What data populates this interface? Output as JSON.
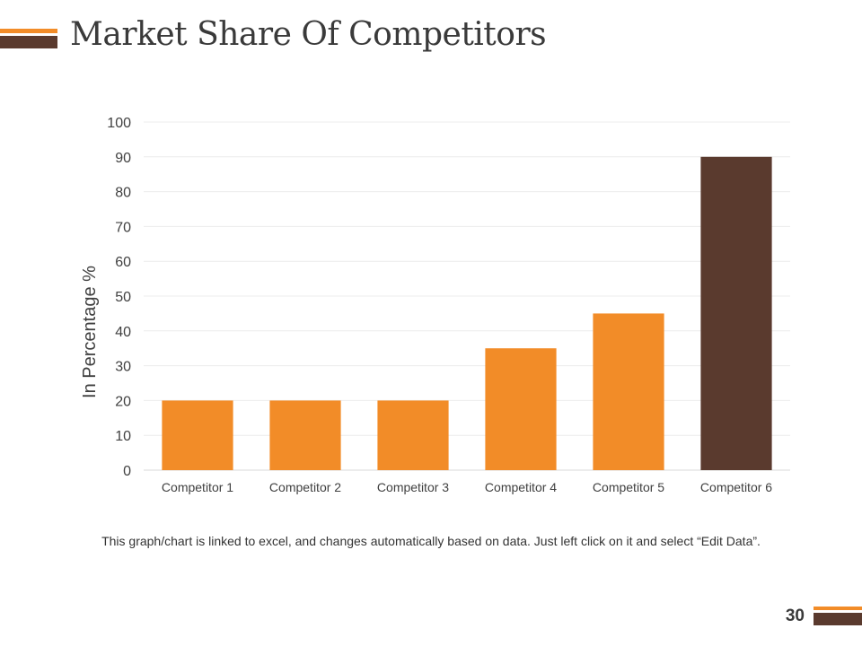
{
  "slide": {
    "title": "Market Share Of Competitors",
    "caption": "This graph/chart is linked to excel, and changes automatically based on data. Just left click on it and select “Edit Data”.",
    "page_number": "30"
  },
  "colors": {
    "accent_orange": "#F28C28",
    "accent_brown": "#5A3A2E",
    "gridline": "#ECECEC",
    "text": "#404040"
  },
  "chart_data": {
    "type": "bar",
    "title": "",
    "xlabel": "",
    "ylabel": "In Percentage %",
    "ylim": [
      0,
      100
    ],
    "yticks": [
      0,
      10,
      20,
      30,
      40,
      50,
      60,
      70,
      80,
      90,
      100
    ],
    "grid": true,
    "categories": [
      "Competitor 1",
      "Competitor 2",
      "Competitor 3",
      "Competitor 4",
      "Competitor 5",
      "Competitor 6"
    ],
    "values": [
      20,
      20,
      20,
      35,
      45,
      90
    ],
    "bar_colors": [
      "#F28C28",
      "#F28C28",
      "#F28C28",
      "#F28C28",
      "#F28C28",
      "#5A3A2E"
    ]
  }
}
